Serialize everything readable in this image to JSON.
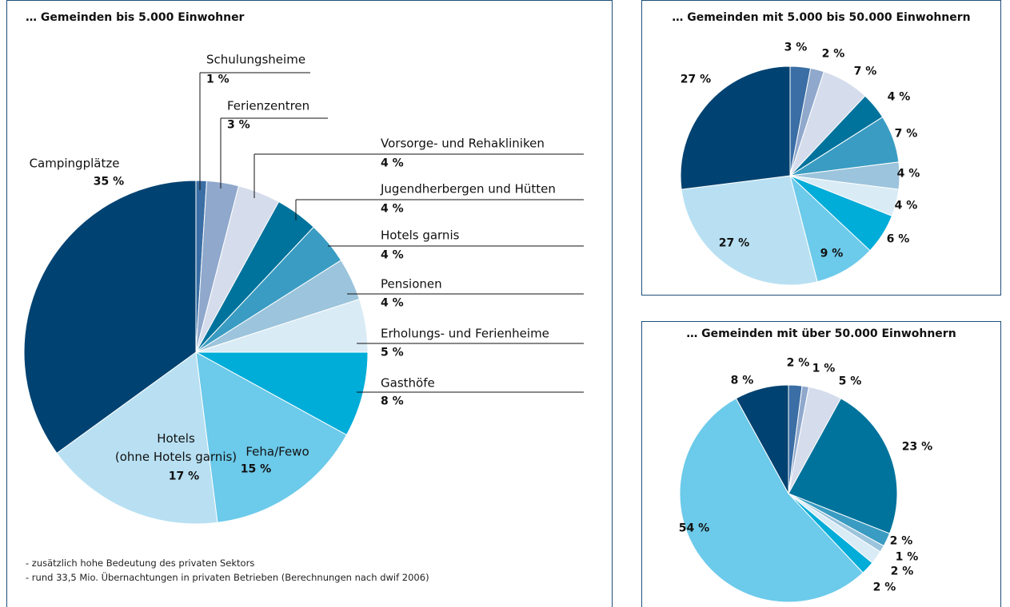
{
  "chart_data": [
    {
      "type": "pie",
      "title": "… Gemeinden bis 5.000 Einwohner",
      "categories": [
        "Schulungsheime",
        "Ferienzentren",
        "Vorsorge- und Rehakliniken",
        "Jugendherbergen und Hütten",
        "Hotels garnis",
        "Pensionen",
        "Erholungs- und Ferienheime",
        "Gasthöfe",
        "Feha/Fewo",
        "Hotels\n(ohne Hotels garnis)",
        "Campingplätze"
      ],
      "values": [
        1,
        3,
        4,
        4,
        4,
        4,
        5,
        8,
        15,
        17,
        35
      ],
      "value_labels": [
        "1 %",
        "3 %",
        "4 %",
        "4 %",
        "4 %",
        "4 %",
        "5 %",
        "8 %",
        "15 %",
        "17 %",
        "35 %"
      ],
      "colors": [
        "#3a6ea5",
        "#8fa8cc",
        "#d5dcec",
        "#00739c",
        "#3a9cc2",
        "#9cc4dc",
        "#d9ebf5",
        "#00acd8",
        "#6ccaea",
        "#b8e0f2",
        "#004271"
      ],
      "notes": [
        "- zusätzlich hohe Bedeutung des privaten Sektors",
        "- rund 33,5 Mio. Übernachtungen in privaten Betrieben (Berechnungen nach dwif 2006)"
      ]
    },
    {
      "type": "pie",
      "title": "… Gemeinden mit 5.000 bis 50.000 Einwohnern",
      "values": [
        3,
        2,
        7,
        4,
        7,
        4,
        4,
        6,
        9,
        27,
        27
      ],
      "value_labels": [
        "3 %",
        "2 %",
        "7 %",
        "4 %",
        "7 %",
        "4 %",
        "4 %",
        "6 %",
        "9 %",
        "27 %",
        "27 %"
      ],
      "colors": [
        "#3a6ea5",
        "#8fa8cc",
        "#d5dcec",
        "#00739c",
        "#3a9cc2",
        "#9cc4dc",
        "#d9ebf5",
        "#00acd8",
        "#6ccaea",
        "#b8e0f2",
        "#004271"
      ]
    },
    {
      "type": "pie",
      "title": "… Gemeinden mit über 50.000 Einwohnern",
      "values": [
        2,
        1,
        5,
        23,
        2,
        1,
        2,
        2,
        54,
        8
      ],
      "value_labels": [
        "2 %",
        "1 %",
        "5 %",
        "23 %",
        "2 %",
        "1 %",
        "2 %",
        "2 %",
        "54 %",
        "8 %"
      ],
      "colors": [
        "#3a6ea5",
        "#8fa8cc",
        "#d5dcec",
        "#00739c",
        "#3a9cc2",
        "#9cc4dc",
        "#d9ebf5",
        "#00acd8",
        "#6ccaea",
        "#004271"
      ]
    }
  ]
}
